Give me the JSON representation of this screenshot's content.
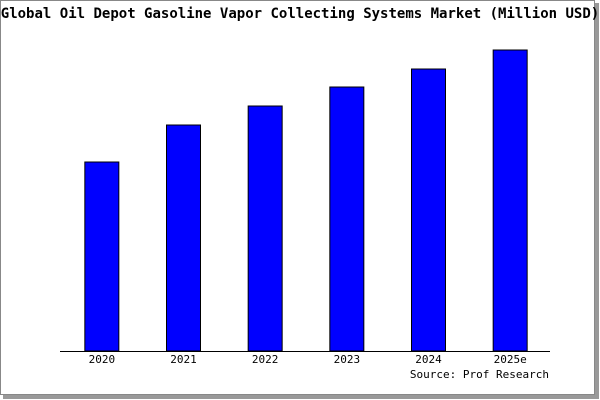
{
  "chart_data": {
    "type": "bar",
    "title": "Global Oil Depot Gasoline Vapor Collecting Systems Market (Million USD)",
    "categories": [
      "2020",
      "2021",
      "2022",
      "2023",
      "2024",
      "2025e"
    ],
    "values": [
      189,
      226,
      245,
      264,
      282,
      301
    ],
    "color": "#0000ff",
    "ylim": [
      0,
      301
    ],
    "source": "Source: Prof Research"
  }
}
